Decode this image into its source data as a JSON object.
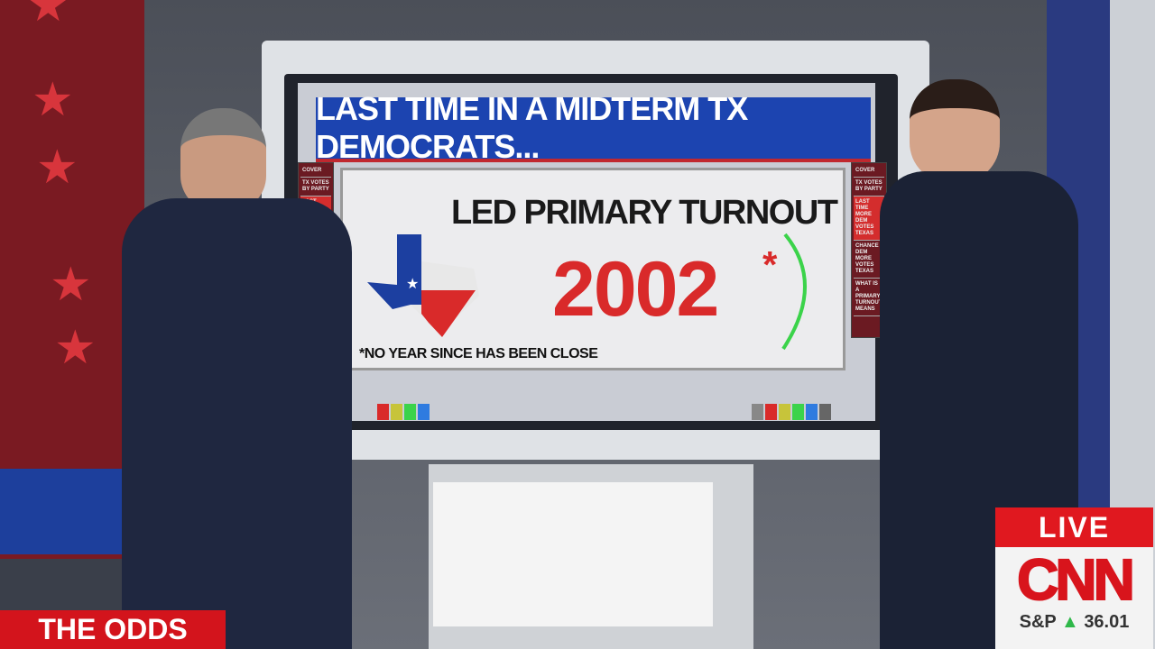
{
  "board": {
    "headline": "LAST TIME IN A MIDTERM TX DEMOCRATS...",
    "card_title": "LED PRIMARY TURNOUT",
    "year": "2002",
    "asterisk": "*",
    "footnote": "*NO YEAR SINCE HAS BEEN CLOSE",
    "menu_items": [
      "COVER",
      "TX VOTES BY PARTY",
      "LAST TIME MORE DEM VOTES TEXAS",
      "CHANCE DEM MORE VOTES TEXAS",
      "WHAT IS A PRIMARY TURNOUT MEANS"
    ],
    "active_menu_index": 2
  },
  "bug": {
    "live": "LIVE",
    "network": "CNN",
    "ticker_label": "S&P",
    "ticker_value": "36.01",
    "ticker_direction": "up"
  },
  "lower_third": {
    "segment": "THE ODDS"
  },
  "colors": {
    "cnn_red": "#d8141c",
    "banner_blue": "#1c44b0",
    "year_red": "#d92a2a",
    "ticker_up": "#2fb84a"
  }
}
